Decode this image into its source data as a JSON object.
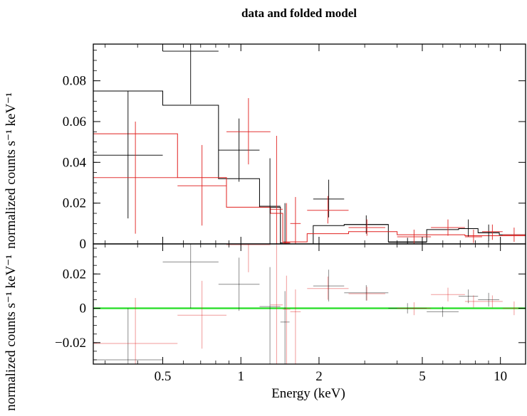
{
  "chart_data": {
    "type": "scatter",
    "title": "data and folded model",
    "xlabel": "Energy (keV)",
    "x_scale": "log",
    "xlim": [
      0.27,
      12.5
    ],
    "x_ticks": [
      {
        "value": 0.5,
        "label": "0.5"
      },
      {
        "value": 1,
        "label": "1"
      },
      {
        "value": 2,
        "label": "2"
      },
      {
        "value": 5,
        "label": "5"
      },
      {
        "value": 10,
        "label": "10"
      }
    ],
    "colors": {
      "black": "#000000",
      "red": "#e0201f",
      "green": "#22dd22"
    },
    "top_panel": {
      "ylabel": "normalized counts s⁻¹ keV⁻¹",
      "ylim": [
        0,
        0.098
      ],
      "y_ticks": [
        {
          "value": 0,
          "label": "0"
        },
        {
          "value": 0.02,
          "label": "0.02"
        },
        {
          "value": 0.04,
          "label": "0.04"
        },
        {
          "value": 0.06,
          "label": "0.06"
        },
        {
          "value": 0.08,
          "label": "0.08"
        }
      ],
      "series": [
        {
          "color": "black",
          "data": [
            {
              "xlo": 0.27,
              "xhi": 0.5,
              "y": 0.0435,
              "ylo": 0.0125,
              "yhi": 0.075
            },
            {
              "xlo": 0.5,
              "xhi": 0.82,
              "y": 0.0945,
              "ylo": 0.0685,
              "yhi": 0.098
            },
            {
              "xlo": 0.82,
              "xhi": 1.18,
              "y": 0.046,
              "ylo": 0.0305,
              "yhi": 0.0615
            },
            {
              "xlo": 1.18,
              "xhi": 1.42,
              "y": 0.0185,
              "ylo": 0.0,
              "yhi": 0.042
            },
            {
              "xlo": 1.42,
              "xhi": 1.54,
              "y": 0.0005,
              "ylo": 0.0,
              "yhi": 0.02
            },
            {
              "xlo": 1.9,
              "xhi": 2.5,
              "y": 0.022,
              "ylo": 0.013,
              "yhi": 0.0315
            },
            {
              "xlo": 2.5,
              "xhi": 3.7,
              "y": 0.0095,
              "ylo": 0.005,
              "yhi": 0.014
            },
            {
              "xlo": 3.7,
              "xhi": 5.2,
              "y": 0.0008,
              "ylo": 0.0,
              "yhi": 0.003
            },
            {
              "xlo": 6.9,
              "xhi": 8.2,
              "y": 0.0075,
              "ylo": 0.0035,
              "yhi": 0.012
            },
            {
              "xlo": 8.2,
              "xhi": 9.9,
              "y": 0.0055,
              "ylo": 0.0015,
              "yhi": 0.0095
            }
          ],
          "model": [
            {
              "xlo": 0.27,
              "xhi": 0.5,
              "y": 0.075
            },
            {
              "xlo": 0.5,
              "xhi": 0.82,
              "y": 0.068
            },
            {
              "xlo": 0.82,
              "xhi": 1.18,
              "y": 0.032
            },
            {
              "xlo": 1.18,
              "xhi": 1.42,
              "y": 0.018
            },
            {
              "xlo": 1.42,
              "xhi": 1.54,
              "y": 0.0
            },
            {
              "xlo": 1.54,
              "xhi": 1.9,
              "y": 0.0
            },
            {
              "xlo": 1.9,
              "xhi": 2.5,
              "y": 0.009
            },
            {
              "xlo": 2.5,
              "xhi": 3.7,
              "y": 0.0095
            },
            {
              "xlo": 3.7,
              "xhi": 5.2,
              "y": 0.001
            },
            {
              "xlo": 5.2,
              "xhi": 6.9,
              "y": 0.007
            },
            {
              "xlo": 6.9,
              "xhi": 8.2,
              "y": 0.0075
            },
            {
              "xlo": 8.2,
              "xhi": 9.9,
              "y": 0.0055
            },
            {
              "xlo": 9.9,
              "xhi": 12.5,
              "y": 0.0045
            }
          ]
        },
        {
          "color": "red",
          "data": [
            {
              "xlo": 0.27,
              "xhi": 0.57,
              "y": 0.0325,
              "ylo": 0.005,
              "yhi": 0.06
            },
            {
              "xlo": 0.57,
              "xhi": 0.88,
              "y": 0.0285,
              "ylo": 0.009,
              "yhi": 0.0485
            },
            {
              "xlo": 0.88,
              "xhi": 1.3,
              "y": 0.055,
              "ylo": 0.039,
              "yhi": 0.0715
            },
            {
              "xlo": 1.3,
              "xhi": 1.45,
              "y": 0.017,
              "ylo": 0.0,
              "yhi": 0.053
            },
            {
              "xlo": 1.45,
              "xhi": 1.55,
              "y": 0.0005,
              "ylo": 0.0,
              "yhi": 0.02
            },
            {
              "xlo": 1.55,
              "xhi": 1.7,
              "y": 0.01,
              "ylo": 0.0,
              "yhi": 0.023
            },
            {
              "xlo": 1.8,
              "xhi": 2.6,
              "y": 0.0165,
              "ylo": 0.01,
              "yhi": 0.0235
            },
            {
              "xlo": 2.6,
              "xhi": 3.6,
              "y": 0.008,
              "ylo": 0.004,
              "yhi": 0.012
            },
            {
              "xlo": 4.0,
              "xhi": 5.4,
              "y": 0.0035,
              "ylo": 0.0,
              "yhi": 0.007
            },
            {
              "xlo": 5.4,
              "xhi": 7.3,
              "y": 0.008,
              "ylo": 0.004,
              "yhi": 0.012
            },
            {
              "xlo": 7.3,
              "xhi": 8.5,
              "y": 0.0035,
              "ylo": 0.0005,
              "yhi": 0.007
            },
            {
              "xlo": 8.5,
              "xhi": 10.2,
              "y": 0.006,
              "ylo": 0.002,
              "yhi": 0.0095
            },
            {
              "xlo": 10.2,
              "xhi": 12.5,
              "y": 0.0045,
              "ylo": 0.001,
              "yhi": 0.008
            }
          ],
          "model": [
            {
              "xlo": 0.27,
              "xhi": 0.57,
              "y": 0.054
            },
            {
              "xlo": 0.57,
              "xhi": 0.88,
              "y": 0.0325
            },
            {
              "xlo": 0.88,
              "xhi": 1.3,
              "y": 0.018
            },
            {
              "xlo": 1.3,
              "xhi": 1.45,
              "y": 0.015
            },
            {
              "xlo": 1.45,
              "xhi": 1.55,
              "y": 0.001
            },
            {
              "xlo": 1.55,
              "xhi": 1.7,
              "y": 0.001
            },
            {
              "xlo": 1.7,
              "xhi": 1.8,
              "y": 0.001
            },
            {
              "xlo": 1.8,
              "xhi": 2.6,
              "y": 0.005
            },
            {
              "xlo": 2.6,
              "xhi": 3.6,
              "y": 0.006
            },
            {
              "xlo": 3.6,
              "xhi": 4.0,
              "y": 0.006
            },
            {
              "xlo": 4.0,
              "xhi": 5.4,
              "y": 0.0045
            },
            {
              "xlo": 5.4,
              "xhi": 7.3,
              "y": 0.0045
            },
            {
              "xlo": 7.3,
              "xhi": 8.5,
              "y": 0.004
            },
            {
              "xlo": 8.5,
              "xhi": 10.2,
              "y": 0.004
            },
            {
              "xlo": 10.2,
              "xhi": 12.5,
              "y": 0.004
            }
          ]
        }
      ]
    },
    "bottom_panel": {
      "ylabel": "normalized counts s⁻¹ keV⁻¹",
      "ylim": [
        -0.0325,
        0.0375
      ],
      "y_ticks": [
        {
          "value": -0.02,
          "label": "−0.02"
        },
        {
          "value": 0,
          "label": "0"
        },
        {
          "value": 0.02,
          "label": "0.02"
        }
      ],
      "zero_line_color": "green",
      "series": [
        {
          "color": "black",
          "data": [
            {
              "xlo": 0.27,
              "xhi": 0.5,
              "y": -0.03,
              "ylo": -0.0325,
              "yhi": 0.0
            },
            {
              "xlo": 0.5,
              "xhi": 0.82,
              "y": 0.027,
              "ylo": 0.0,
              "yhi": 0.0375
            },
            {
              "xlo": 0.82,
              "xhi": 1.18,
              "y": 0.014,
              "ylo": -0.0015,
              "yhi": 0.0295
            },
            {
              "xlo": 1.18,
              "xhi": 1.42,
              "y": 0.001,
              "ylo": -0.0325,
              "yhi": 0.024
            },
            {
              "xlo": 1.42,
              "xhi": 1.54,
              "y": -0.008,
              "ylo": -0.0325,
              "yhi": 0.01
            },
            {
              "xlo": 1.9,
              "xhi": 2.5,
              "y": 0.013,
              "ylo": 0.004,
              "yhi": 0.0225
            },
            {
              "xlo": 2.5,
              "xhi": 3.7,
              "y": 0.009,
              "ylo": 0.0045,
              "yhi": 0.0135
            },
            {
              "xlo": 3.7,
              "xhi": 5.2,
              "y": 0.0,
              "ylo": -0.003,
              "yhi": 0.003
            },
            {
              "xlo": 5.2,
              "xhi": 6.9,
              "y": -0.002,
              "ylo": -0.005,
              "yhi": 0.001
            },
            {
              "xlo": 6.9,
              "xhi": 8.2,
              "y": 0.007,
              "ylo": 0.003,
              "yhi": 0.011
            },
            {
              "xlo": 8.2,
              "xhi": 9.9,
              "y": 0.005,
              "ylo": 0.001,
              "yhi": 0.009
            }
          ]
        },
        {
          "color": "red",
          "data": [
            {
              "xlo": 0.27,
              "xhi": 0.57,
              "y": -0.0205,
              "ylo": -0.0325,
              "yhi": 0.006
            },
            {
              "xlo": 0.57,
              "xhi": 0.88,
              "y": -0.004,
              "ylo": -0.0235,
              "yhi": 0.016
            },
            {
              "xlo": 0.88,
              "xhi": 1.3,
              "y": 0.037,
              "ylo": 0.021,
              "yhi": 0.0375
            },
            {
              "xlo": 1.3,
              "xhi": 1.45,
              "y": 0.002,
              "ylo": -0.0325,
              "yhi": 0.0375
            },
            {
              "xlo": 1.45,
              "xhi": 1.55,
              "y": -0.0005,
              "ylo": -0.0325,
              "yhi": 0.019
            },
            {
              "xlo": 1.55,
              "xhi": 1.7,
              "y": -0.002,
              "ylo": -0.0325,
              "yhi": 0.011
            },
            {
              "xlo": 1.8,
              "xhi": 2.6,
              "y": 0.0115,
              "ylo": 0.005,
              "yhi": 0.0185
            },
            {
              "xlo": 2.6,
              "xhi": 3.6,
              "y": 0.0085,
              "ylo": 0.0045,
              "yhi": 0.0125
            },
            {
              "xlo": 4.0,
              "xhi": 5.4,
              "y": 0.0,
              "ylo": -0.004,
              "yhi": 0.0035
            },
            {
              "xlo": 5.4,
              "xhi": 7.3,
              "y": 0.008,
              "ylo": 0.004,
              "yhi": 0.012
            },
            {
              "xlo": 7.3,
              "xhi": 8.5,
              "y": 0.004,
              "ylo": 0.0005,
              "yhi": 0.0075
            },
            {
              "xlo": 8.5,
              "xhi": 10.2,
              "y": 0.004,
              "ylo": 0.0005,
              "yhi": 0.0075
            },
            {
              "xlo": 10.2,
              "xhi": 12.5,
              "y": 0.0,
              "ylo": -0.004,
              "yhi": 0.004
            }
          ]
        }
      ]
    }
  }
}
